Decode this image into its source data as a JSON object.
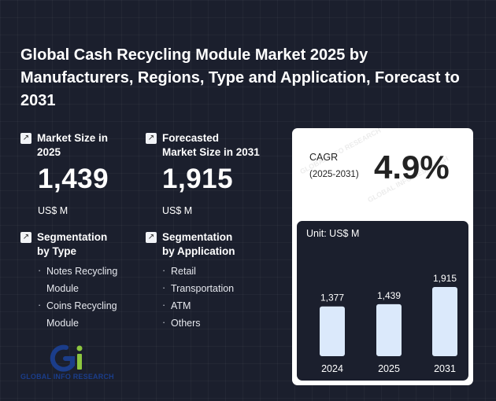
{
  "title": "Global Cash Recycling Module Market 2025 by Manufacturers, Regions, Type and Application, Forecast to 2031",
  "market_size": {
    "label_line1": "Market Size in",
    "label_line2": "2025",
    "value": "1,439",
    "unit": "US$ M"
  },
  "forecast_size": {
    "label_line1": "Forecasted",
    "label_line2": "Market Size in 2031",
    "value": "1,915",
    "unit": "US$ M"
  },
  "segmentation_type": {
    "label_line1": "Segmentation",
    "label_line2": "by Type",
    "items": [
      "Notes Recycling",
      "Module",
      "Coins Recycling",
      "Module"
    ]
  },
  "segmentation_application": {
    "label_line1": "Segmentation",
    "label_line2": "by Application",
    "items": [
      "Retail",
      "Transportation",
      "ATM",
      "Others"
    ]
  },
  "logo": {
    "text": "GLOBAL INFO RESEARCH",
    "colors": {
      "blue": "#1b3d8a",
      "green": "#8dc63f"
    }
  },
  "cagr": {
    "label": "CAGR",
    "period": "(2025-2031)",
    "value": "4.9%"
  },
  "icons": {
    "arrow": "arrow-up-right-icon"
  },
  "colors": {
    "background": "#1b1f2d",
    "bar": "#dbe9fb",
    "panel": "#ffffff"
  },
  "chart_data": {
    "type": "bar",
    "unit_label": "Unit: US$ M",
    "categories": [
      "2024",
      "2025",
      "2031"
    ],
    "values": [
      1377,
      1439,
      1915
    ],
    "value_labels": [
      "1,377",
      "1,439",
      "1,915"
    ],
    "ylim": [
      0,
      1915
    ],
    "grid": false
  }
}
